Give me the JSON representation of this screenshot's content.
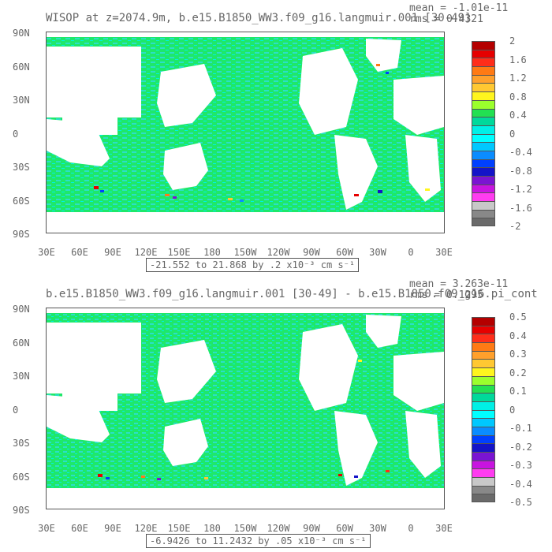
{
  "panels": [
    {
      "title": "WISOP at z=2074.9m, b.e15.B1850_WW3.f09_g16.langmuir.001 [30-49]",
      "mean": "mean = -1.01e-11",
      "rms": "rms = 0.4321",
      "range_label": "-21.552 to 21.868 by .2 x10⁻³ cm s⁻¹",
      "colorbar_labels": [
        "2",
        "1.6",
        "1.2",
        "0.8",
        "0.4",
        "0",
        "-0.4",
        "-0.8",
        "-1.2",
        "-1.6",
        "-2"
      ]
    },
    {
      "title": "b.e15.B1850_WW3.f09_g16.langmuir.001 [30-49] - b.e15.B1850.f09_g16.pi_cont",
      "mean": "mean = 3.263e-11",
      "rms": "rms = 0.1295",
      "range_label": "-6.9426 to 11.2432 by .05 x10⁻³ cm s⁻¹",
      "colorbar_labels": [
        "0.5",
        "0.4",
        "0.3",
        "0.2",
        "0.1",
        "0",
        "-0.1",
        "-0.2",
        "-0.3",
        "-0.4",
        "-0.5"
      ]
    }
  ],
  "y_axis_labels": [
    "90N",
    "60N",
    "30N",
    "0",
    "30S",
    "60S",
    "90S"
  ],
  "x_axis_labels": [
    "30E",
    "60E",
    "90E",
    "120E",
    "150E",
    "180",
    "150W",
    "120W",
    "90W",
    "60W",
    "30W",
    "0",
    "30E"
  ],
  "colorbar_colors": [
    "#b40000",
    "#e60000",
    "#ff2d1a",
    "#ff7a14",
    "#ffa02c",
    "#ffc832",
    "#fff51e",
    "#9bff2d",
    "#22e052",
    "#00d99b",
    "#00f0e6",
    "#00ffff",
    "#00c8ff",
    "#0a8cff",
    "#0040ff",
    "#1414c8",
    "#7a14d2",
    "#c814e0",
    "#ff3cf0",
    "#c8c8c8",
    "#888888",
    "#6a6a6a"
  ],
  "colors": {
    "ocean_green": "#1ee86a",
    "ocean_teal": "#2ae0c8",
    "ocean_cyan": "#00f0e6",
    "land": "#ffffff",
    "text": "#666666"
  }
}
